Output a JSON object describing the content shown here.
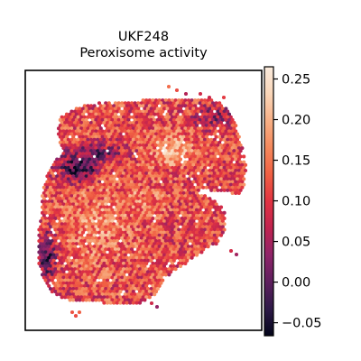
{
  "figure": {
    "title": "UKF248",
    "subtitle": "Peroxisome activity"
  },
  "chart_data": {
    "type": "heatmap",
    "subtype": "spatial-hexbin",
    "title": "UKF248",
    "subtitle": "Peroxisome activity",
    "xlabel": "",
    "ylabel": "",
    "axes_ticks_visible": false,
    "grid": false,
    "colormap": "rocket",
    "colormap_stops": [
      "#03051a",
      "#2e1a48",
      "#5e1f5e",
      "#8f2469",
      "#c0234f",
      "#e13342",
      "#f06043",
      "#f5895c",
      "#f7b086",
      "#f9d6b9",
      "#faebdd"
    ],
    "colorbar": {
      "position": "right",
      "range": [
        -0.066,
        0.265
      ],
      "ticks": [
        -0.05,
        0.0,
        0.05,
        0.1,
        0.15,
        0.2,
        0.25
      ],
      "tick_labels": [
        "−0.05",
        "0.00",
        "0.05",
        "0.10",
        "0.15",
        "0.20",
        "0.25"
      ]
    },
    "value_summary": {
      "min": -0.066,
      "max": 0.265,
      "typical": 0.13
    }
  }
}
